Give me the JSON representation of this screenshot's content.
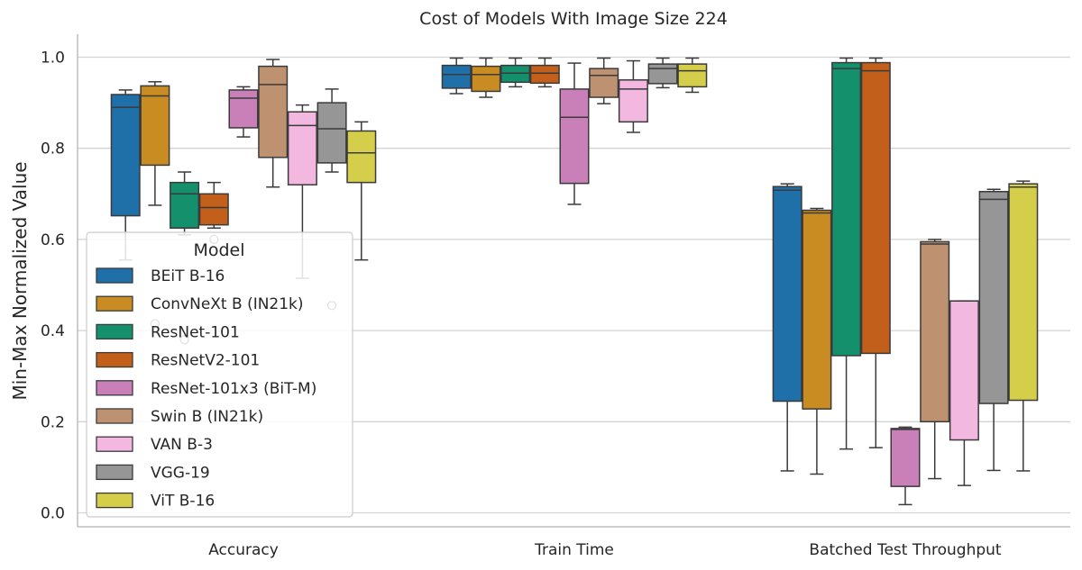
{
  "chart_data": {
    "type": "box",
    "title": "Cost of Models With Image Size 224",
    "xlabel": "",
    "ylabel": "Min-Max Normalized Value",
    "ylim": [
      -0.03,
      1.05
    ],
    "yticks": [
      0.0,
      0.2,
      0.4,
      0.6,
      0.8,
      1.0
    ],
    "ytick_labels": [
      "0.0",
      "0.2",
      "0.4",
      "0.6",
      "0.8",
      "1.0"
    ],
    "grid": "horizontal",
    "categories": [
      "Accuracy",
      "Train Time",
      "Batched Test Throughput"
    ],
    "legend": {
      "title": "Model",
      "placement": "lower-left"
    },
    "series": [
      {
        "name": "BEiT B-16",
        "color": "#1f6fa9",
        "boxes": [
          {
            "wlo": 0.555,
            "q1": 0.652,
            "med": 0.89,
            "q3": 0.918,
            "whi": 0.928,
            "outliers": []
          },
          {
            "wlo": 0.92,
            "q1": 0.932,
            "med": 0.962,
            "q3": 0.982,
            "whi": 0.998,
            "outliers": []
          },
          {
            "wlo": 0.092,
            "q1": 0.245,
            "med": 0.708,
            "q3": 0.716,
            "whi": 0.722,
            "outliers": []
          }
        ]
      },
      {
        "name": "ConvNeXt B (IN21k)",
        "color": "#c88c22",
        "boxes": [
          {
            "wlo": 0.675,
            "q1": 0.763,
            "med": 0.915,
            "q3": 0.937,
            "whi": 0.946,
            "outliers": [
              0.415
            ]
          },
          {
            "wlo": 0.912,
            "q1": 0.925,
            "med": 0.962,
            "q3": 0.98,
            "whi": 0.998,
            "outliers": []
          },
          {
            "wlo": 0.085,
            "q1": 0.228,
            "med": 0.658,
            "q3": 0.664,
            "whi": 0.668,
            "outliers": []
          }
        ]
      },
      {
        "name": "ResNet-101",
        "color": "#14906c",
        "boxes": [
          {
            "wlo": 0.61,
            "q1": 0.625,
            "med": 0.7,
            "q3": 0.725,
            "whi": 0.748,
            "outliers": [
              0.38
            ]
          },
          {
            "wlo": 0.935,
            "q1": 0.945,
            "med": 0.965,
            "q3": 0.982,
            "whi": 0.998,
            "outliers": []
          },
          {
            "wlo": 0.14,
            "q1": 0.345,
            "med": 0.975,
            "q3": 0.988,
            "whi": 0.998,
            "outliers": []
          }
        ]
      },
      {
        "name": "ResNetV2-101",
        "color": "#c25f1a",
        "boxes": [
          {
            "wlo": 0.625,
            "q1": 0.632,
            "med": 0.67,
            "q3": 0.7,
            "whi": 0.725,
            "outliers": [
              0.6
            ]
          },
          {
            "wlo": 0.935,
            "q1": 0.943,
            "med": 0.965,
            "q3": 0.982,
            "whi": 0.998,
            "outliers": []
          },
          {
            "wlo": 0.143,
            "q1": 0.35,
            "med": 0.97,
            "q3": 0.988,
            "whi": 0.998,
            "outliers": []
          }
        ]
      },
      {
        "name": "ResNet-101x3 (BiT-M)",
        "color": "#c97fb8",
        "boxes": [
          {
            "wlo": 0.825,
            "q1": 0.845,
            "med": 0.91,
            "q3": 0.928,
            "whi": 0.935,
            "outliers": []
          },
          {
            "wlo": 0.677,
            "q1": 0.723,
            "med": 0.868,
            "q3": 0.93,
            "whi": 0.987,
            "outliers": []
          },
          {
            "wlo": 0.018,
            "q1": 0.058,
            "med": 0.183,
            "q3": 0.185,
            "whi": 0.188,
            "outliers": []
          }
        ]
      },
      {
        "name": "Swin B (IN21k)",
        "color": "#be9271",
        "boxes": [
          {
            "wlo": 0.715,
            "q1": 0.78,
            "med": 0.94,
            "q3": 0.98,
            "whi": 0.995,
            "outliers": []
          },
          {
            "wlo": 0.898,
            "q1": 0.912,
            "med": 0.96,
            "q3": 0.975,
            "whi": 0.998,
            "outliers": []
          },
          {
            "wlo": 0.075,
            "q1": 0.2,
            "med": 0.59,
            "q3": 0.595,
            "whi": 0.6,
            "outliers": []
          }
        ]
      },
      {
        "name": "VAN B-3",
        "color": "#f3b8df",
        "boxes": [
          {
            "wlo": 0.515,
            "q1": 0.72,
            "med": 0.85,
            "q3": 0.88,
            "whi": 0.895,
            "outliers": []
          },
          {
            "wlo": 0.835,
            "q1": 0.858,
            "med": 0.93,
            "q3": 0.95,
            "whi": 0.992,
            "outliers": []
          },
          {
            "wlo": 0.06,
            "q1": 0.16,
            "med": 0.465,
            "q3": 0.465,
            "whi": 0.465,
            "outliers": []
          }
        ]
      },
      {
        "name": "VGG-19",
        "color": "#969696",
        "boxes": [
          {
            "wlo": 0.748,
            "q1": 0.768,
            "med": 0.843,
            "q3": 0.9,
            "whi": 0.93,
            "outliers": [
              0.455
            ]
          },
          {
            "wlo": 0.933,
            "q1": 0.942,
            "med": 0.975,
            "q3": 0.985,
            "whi": 0.998,
            "outliers": []
          },
          {
            "wlo": 0.093,
            "q1": 0.24,
            "med": 0.688,
            "q3": 0.705,
            "whi": 0.71,
            "outliers": []
          }
        ]
      },
      {
        "name": "ViT B-16",
        "color": "#d5ce4a",
        "boxes": [
          {
            "wlo": 0.555,
            "q1": 0.725,
            "med": 0.79,
            "q3": 0.838,
            "whi": 0.858,
            "outliers": []
          },
          {
            "wlo": 0.923,
            "q1": 0.935,
            "med": 0.97,
            "q3": 0.985,
            "whi": 0.998,
            "outliers": []
          },
          {
            "wlo": 0.092,
            "q1": 0.247,
            "med": 0.715,
            "q3": 0.722,
            "whi": 0.728,
            "outliers": []
          }
        ]
      }
    ]
  }
}
